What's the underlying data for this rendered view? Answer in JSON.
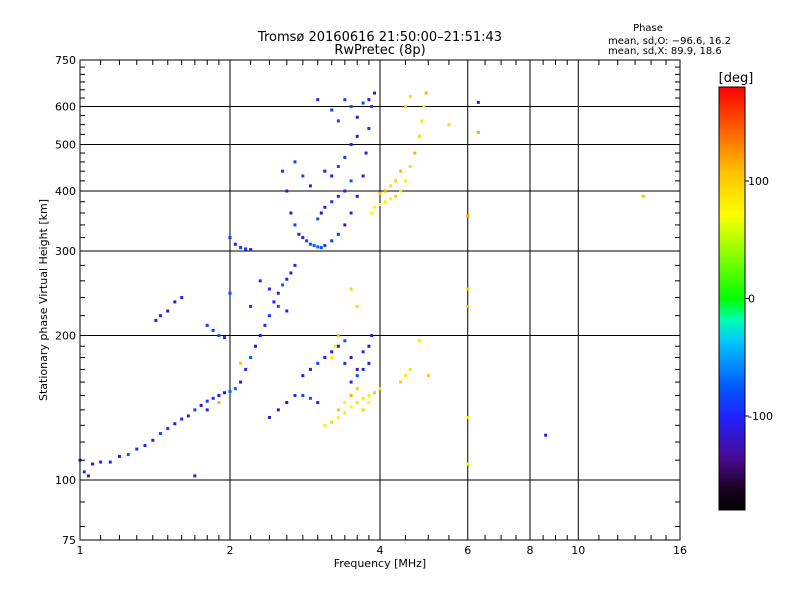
{
  "chart_data": {
    "type": "scatter",
    "title": "Tromsø 20160616 21:50:00–21:51:43",
    "subtitle": "RwPretec (8p)",
    "xlabel": "Frequency [MHz]",
    "ylabel": "Stationary phase Virtual Height [km]",
    "x_scale": "log",
    "y_scale": "log",
    "xlim": [
      1,
      16
    ],
    "ylim": [
      75,
      750
    ],
    "x_ticks": [
      1,
      2,
      4,
      6,
      8,
      10,
      16
    ],
    "x_tick_labels": [
      "1",
      "2",
      "4",
      "6",
      "8",
      "10",
      "16"
    ],
    "y_ticks": [
      75,
      100,
      200,
      300,
      400,
      500,
      600,
      750
    ],
    "y_tick_labels": [
      "75",
      "100",
      "200",
      "300",
      "400",
      "500",
      "600",
      "750"
    ],
    "grid": true,
    "stats": {
      "header": "Phase",
      "line_o": "mean, sd,O: −96.6, 16.2",
      "line_x": "mean, sd,X:  89.9, 18.6"
    },
    "colorbar": {
      "label": "[deg]",
      "min": -180,
      "max": 180,
      "ticks": [
        100,
        0,
        -100
      ],
      "tick_labels": [
        "100",
        "0",
        "-100"
      ]
    },
    "series": [
      {
        "mode": "O",
        "phase_mean": -96.6,
        "phase_sd": 16.2,
        "points": [
          [
            1.0,
            110
          ],
          [
            1.02,
            104
          ],
          [
            1.04,
            102
          ],
          [
            1.06,
            108
          ],
          [
            1.1,
            109
          ],
          [
            1.15,
            109
          ],
          [
            1.2,
            112
          ],
          [
            1.25,
            113
          ],
          [
            1.3,
            116
          ],
          [
            1.35,
            118
          ],
          [
            1.4,
            121
          ],
          [
            1.45,
            125
          ],
          [
            1.5,
            128
          ],
          [
            1.55,
            131
          ],
          [
            1.6,
            134
          ],
          [
            1.65,
            136
          ],
          [
            1.7,
            140
          ],
          [
            1.75,
            143
          ],
          [
            1.8,
            146
          ],
          [
            1.85,
            148
          ],
          [
            1.9,
            150
          ],
          [
            1.95,
            152
          ],
          [
            2.0,
            153
          ],
          [
            2.05,
            155
          ],
          [
            2.1,
            160
          ],
          [
            2.15,
            170
          ],
          [
            2.2,
            180
          ],
          [
            2.25,
            190
          ],
          [
            2.3,
            200
          ],
          [
            2.35,
            210
          ],
          [
            2.4,
            220
          ],
          [
            2.45,
            235
          ],
          [
            2.5,
            245
          ],
          [
            2.55,
            255
          ],
          [
            2.6,
            262
          ],
          [
            2.65,
            270
          ],
          [
            2.7,
            280
          ],
          [
            2.8,
            165
          ],
          [
            2.9,
            170
          ],
          [
            3.0,
            175
          ],
          [
            3.1,
            180
          ],
          [
            3.2,
            185
          ],
          [
            3.3,
            190
          ],
          [
            3.4,
            195
          ],
          [
            3.5,
            160
          ],
          [
            3.6,
            165
          ],
          [
            3.7,
            170
          ],
          [
            3.8,
            175
          ],
          [
            2.0,
            320
          ],
          [
            2.05,
            310
          ],
          [
            2.1,
            305
          ],
          [
            2.15,
            303
          ],
          [
            2.2,
            302
          ],
          [
            1.42,
            215
          ],
          [
            1.45,
            220
          ],
          [
            1.5,
            225
          ],
          [
            1.55,
            235
          ],
          [
            1.6,
            240
          ],
          [
            1.8,
            210
          ],
          [
            1.85,
            205
          ],
          [
            1.9,
            200
          ],
          [
            1.95,
            198
          ],
          [
            2.2,
            230
          ],
          [
            2.3,
            260
          ],
          [
            2.4,
            250
          ],
          [
            2.5,
            230
          ],
          [
            2.6,
            225
          ],
          [
            2.55,
            440
          ],
          [
            2.6,
            400
          ],
          [
            2.65,
            360
          ],
          [
            2.7,
            340
          ],
          [
            2.75,
            325
          ],
          [
            2.8,
            320
          ],
          [
            2.85,
            315
          ],
          [
            2.9,
            310
          ],
          [
            2.95,
            308
          ],
          [
            3.0,
            306
          ],
          [
            3.05,
            305
          ],
          [
            3.1,
            308
          ],
          [
            3.2,
            315
          ],
          [
            3.3,
            325
          ],
          [
            3.4,
            340
          ],
          [
            3.5,
            360
          ],
          [
            3.6,
            390
          ],
          [
            3.7,
            430
          ],
          [
            3.75,
            480
          ],
          [
            3.8,
            540
          ],
          [
            3.85,
            600
          ],
          [
            3.9,
            640
          ],
          [
            3.0,
            350
          ],
          [
            3.05,
            360
          ],
          [
            3.1,
            370
          ],
          [
            3.2,
            380
          ],
          [
            3.3,
            390
          ],
          [
            3.4,
            400
          ],
          [
            3.5,
            420
          ],
          [
            3.2,
            430
          ],
          [
            3.3,
            450
          ],
          [
            3.4,
            470
          ],
          [
            3.5,
            500
          ],
          [
            3.6,
            520
          ],
          [
            2.7,
            460
          ],
          [
            2.8,
            430
          ],
          [
            2.9,
            410
          ],
          [
            3.1,
            440
          ],
          [
            3.0,
            620
          ],
          [
            3.2,
            590
          ],
          [
            3.3,
            560
          ],
          [
            3.4,
            620
          ],
          [
            3.5,
            600
          ],
          [
            3.6,
            570
          ],
          [
            3.7,
            610
          ],
          [
            3.8,
            620
          ],
          [
            2.4,
            135
          ],
          [
            2.5,
            140
          ],
          [
            2.6,
            145
          ],
          [
            2.7,
            150
          ],
          [
            2.8,
            150
          ],
          [
            2.9,
            148
          ],
          [
            3.0,
            145
          ],
          [
            3.4,
            175
          ],
          [
            3.5,
            180
          ],
          [
            3.6,
            170
          ],
          [
            3.7,
            185
          ],
          [
            3.8,
            190
          ],
          [
            3.85,
            200
          ],
          [
            8.6,
            124
          ],
          [
            6.3,
            612
          ],
          [
            2.0,
            245
          ],
          [
            1.8,
            140
          ],
          [
            1.7,
            102
          ]
        ]
      },
      {
        "mode": "X",
        "phase_mean": 89.9,
        "phase_sd": 18.6,
        "points": [
          [
            3.1,
            130
          ],
          [
            3.2,
            132
          ],
          [
            3.3,
            135
          ],
          [
            3.4,
            138
          ],
          [
            3.5,
            142
          ],
          [
            3.6,
            145
          ],
          [
            3.7,
            148
          ],
          [
            3.8,
            150
          ],
          [
            3.9,
            152
          ],
          [
            4.0,
            155
          ],
          [
            3.3,
            140
          ],
          [
            3.4,
            145
          ],
          [
            3.5,
            150
          ],
          [
            3.6,
            155
          ],
          [
            3.7,
            140
          ],
          [
            3.8,
            145
          ],
          [
            3.2,
            180
          ],
          [
            3.25,
            190
          ],
          [
            3.3,
            200
          ],
          [
            3.85,
            360
          ],
          [
            3.9,
            370
          ],
          [
            4.0,
            375
          ],
          [
            4.1,
            380
          ],
          [
            4.2,
            385
          ],
          [
            4.3,
            390
          ],
          [
            4.4,
            400
          ],
          [
            4.5,
            420
          ],
          [
            4.6,
            450
          ],
          [
            4.7,
            480
          ],
          [
            4.8,
            520
          ],
          [
            4.85,
            560
          ],
          [
            4.9,
            600
          ],
          [
            4.95,
            640
          ],
          [
            4.5,
            600
          ],
          [
            4.6,
            630
          ],
          [
            4.4,
            440
          ],
          [
            4.3,
            420
          ],
          [
            4.2,
            410
          ],
          [
            4.1,
            400
          ],
          [
            4.0,
            395
          ],
          [
            4.5,
            165
          ],
          [
            4.6,
            170
          ],
          [
            4.4,
            160
          ],
          [
            2.1,
            175
          ],
          [
            1.9,
            145
          ],
          [
            5.5,
            550
          ],
          [
            6.0,
            355
          ],
          [
            6.0,
            250
          ],
          [
            6.0,
            230
          ],
          [
            6.0,
            135
          ],
          [
            6.0,
            108
          ],
          [
            6.3,
            530
          ],
          [
            3.6,
            230
          ],
          [
            3.5,
            250
          ],
          [
            4.8,
            195
          ],
          [
            5.0,
            165
          ],
          [
            13.5,
            390
          ]
        ]
      }
    ]
  }
}
